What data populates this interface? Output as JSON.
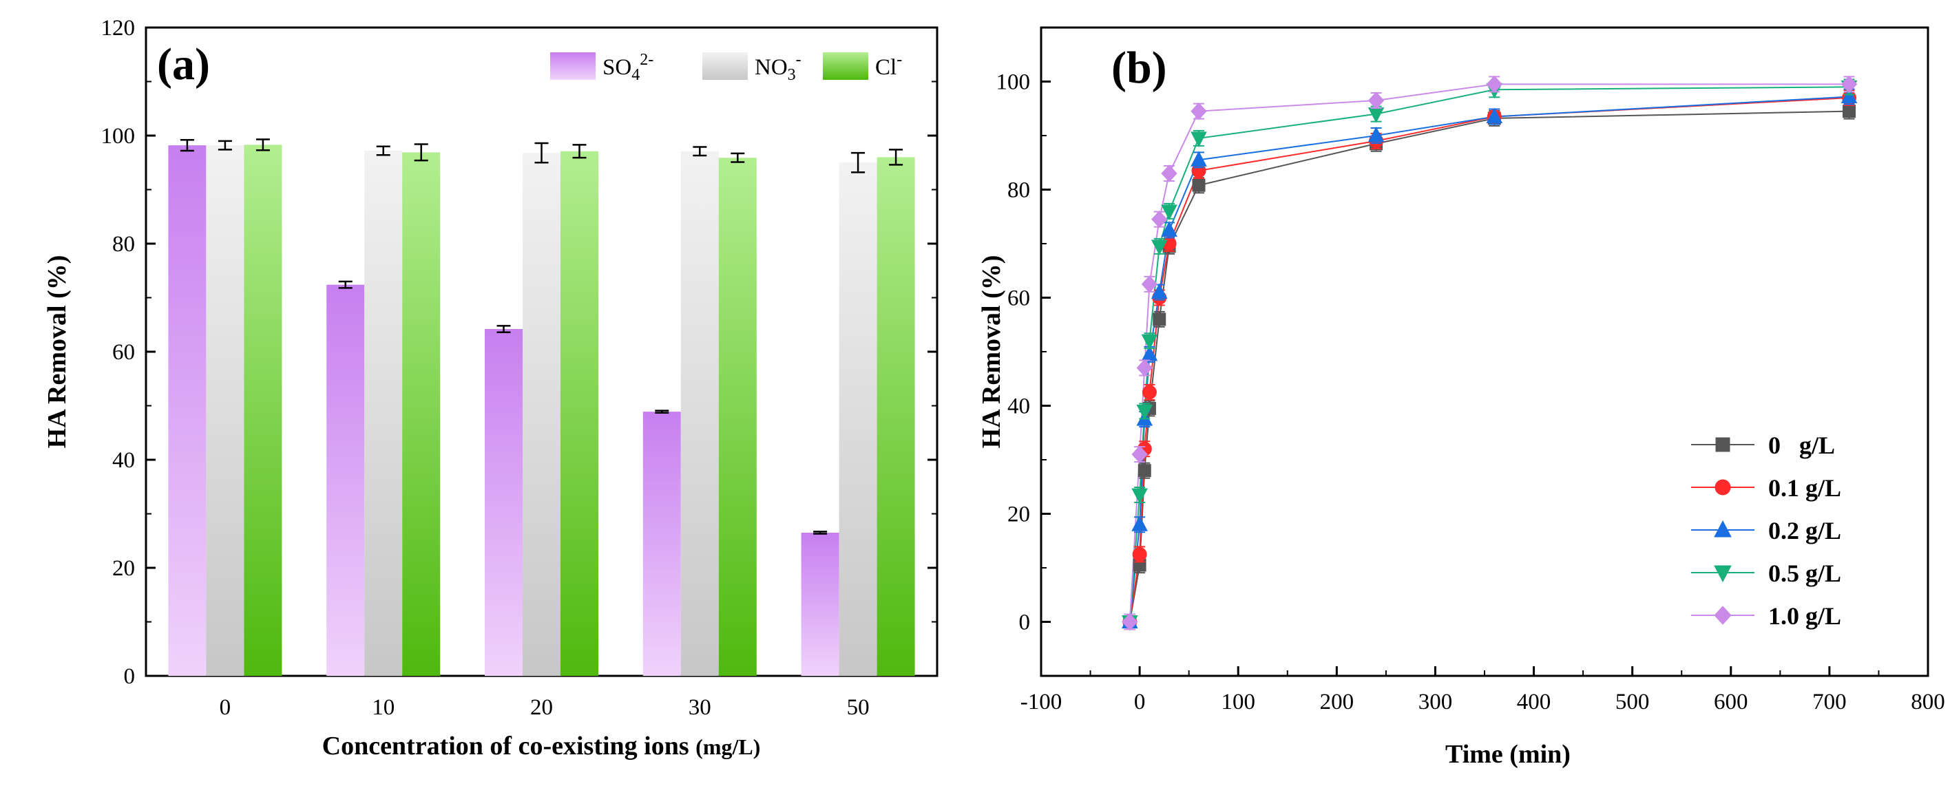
{
  "chart_data": [
    {
      "type": "bar",
      "panel_label": "(a)",
      "categories": [
        "0",
        "10",
        "20",
        "30",
        "50"
      ],
      "series": [
        {
          "name": "SO4 2-",
          "legend_main": "SO",
          "legend_sub": "4",
          "legend_sup": "2-",
          "values": [
            98.2,
            72.4,
            64.2,
            48.9,
            26.5
          ],
          "errors": [
            1.0,
            0.6,
            0.6,
            0.2,
            0.2
          ],
          "color_top": "#c77ff0",
          "color_bottom": "#f0d2fb"
        },
        {
          "name": "NO3 -",
          "legend_main": "NO",
          "legend_sub": "3",
          "legend_sup": "-",
          "values": [
            98.2,
            97.2,
            96.8,
            97.1,
            95.0
          ],
          "errors": [
            0.8,
            0.8,
            1.8,
            0.8,
            1.8
          ],
          "color_top": "#f2f2f2",
          "color_bottom": "#c7c7c7"
        },
        {
          "name": "Cl -",
          "legend_main": "Cl",
          "legend_sub": "",
          "legend_sup": "-",
          "values": [
            98.3,
            96.9,
            97.1,
            95.9,
            96.0
          ],
          "errors": [
            1.0,
            1.5,
            1.2,
            0.8,
            1.4
          ],
          "color_top": "#b3ee91",
          "color_bottom": "#4fb80e"
        }
      ],
      "ylim": [
        0,
        120
      ],
      "yticks": [
        0,
        20,
        40,
        60,
        80,
        100,
        120
      ],
      "ylabel": "HA Removal (%)",
      "xlabel_main": "Concentration of co-existing ions ",
      "xlabel_unit": "(mg/L)",
      "legend_position": "top-right"
    },
    {
      "type": "line",
      "panel_label": "(b)",
      "x": [
        -10,
        0,
        5,
        10,
        20,
        30,
        60,
        240,
        360,
        720
      ],
      "series": [
        {
          "name": "0   g/L",
          "marker": "square",
          "color": "#555555",
          "values": [
            0,
            10.5,
            28.0,
            39.5,
            56.0,
            69.5,
            80.8,
            88.5,
            93.2,
            94.5
          ]
        },
        {
          "name": "0.1 g/L",
          "marker": "circle",
          "color": "#ff2b2b",
          "values": [
            0,
            12.5,
            32.0,
            42.5,
            60.0,
            70.0,
            83.5,
            89.0,
            93.5,
            97.0
          ]
        },
        {
          "name": "0.2 g/L",
          "marker": "triangle-up",
          "color": "#1a6fe0",
          "values": [
            0,
            18.0,
            37.5,
            49.5,
            61.0,
            72.5,
            85.5,
            90.0,
            93.5,
            97.2
          ]
        },
        {
          "name": "0.5 g/L",
          "marker": "triangle-down",
          "color": "#18b07a",
          "values": [
            0,
            23.5,
            39.0,
            52.0,
            69.5,
            76.0,
            89.5,
            94.0,
            98.5,
            99.0
          ]
        },
        {
          "name": "1.0 g/L",
          "marker": "diamond",
          "color": "#c98ae8",
          "values": [
            0,
            31.0,
            47.0,
            62.5,
            74.5,
            83.0,
            94.5,
            96.5,
            99.5,
            99.5
          ]
        }
      ],
      "xlim": [
        -100,
        800
      ],
      "xticks": [
        -100,
        0,
        100,
        200,
        300,
        400,
        500,
        600,
        700,
        800
      ],
      "ylim": [
        -10,
        110
      ],
      "yticks": [
        0,
        20,
        40,
        60,
        80,
        100
      ],
      "xlabel": "Time (min)",
      "ylabel": "HA Removal (%)",
      "legend_position": "bottom-right"
    }
  ]
}
